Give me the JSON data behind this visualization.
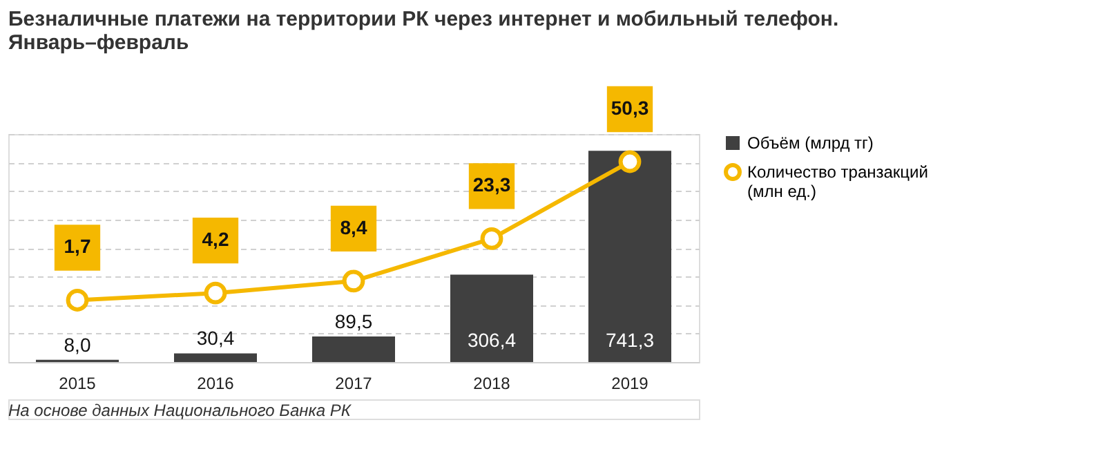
{
  "chart_data": {
    "type": "bar",
    "title": [
      "Безналичные платежи на территории РК через интернет и мобильный телефон.",
      "Январь–февраль"
    ],
    "categories": [
      "2015",
      "2016",
      "2017",
      "2018",
      "2019"
    ],
    "series": [
      {
        "name": "Объём (млрд тг)",
        "color": "#404040",
        "values": [
          8.0,
          30.4,
          89.5,
          306.4,
          741.3
        ],
        "value_labels": [
          "8,0",
          "30,4",
          "89,5",
          "306,4",
          "741,3"
        ]
      },
      {
        "name": "Количество транзакций (млн ед.)",
        "type": "line",
        "axis": "y2",
        "color": "#f5b800",
        "marker": "circle",
        "values": [
          1.7,
          4.2,
          8.4,
          23.3,
          50.3
        ],
        "value_labels": [
          "1,7",
          "4,2",
          "8,4",
          "23,3",
          "50,3"
        ]
      }
    ],
    "ylim": [
      0,
      800
    ],
    "yticks": [
      {
        "value": 0,
        "label": null
      },
      {
        "value": 100,
        "label": null
      },
      {
        "value": 200,
        "label": null
      },
      {
        "value": 300,
        "label": null
      },
      {
        "value": 400,
        "label": null
      },
      {
        "value": 500,
        "label": null
      },
      {
        "value": 600,
        "label": null
      },
      {
        "value": 700,
        "label": null
      },
      {
        "value": 800,
        "label": null
      }
    ],
    "y2lim": [
      -20,
      60
    ],
    "grid": "y",
    "legend": "right",
    "tick_labels": "x",
    "annotations": [
      "На основе данных Национального Банка РК"
    ]
  }
}
